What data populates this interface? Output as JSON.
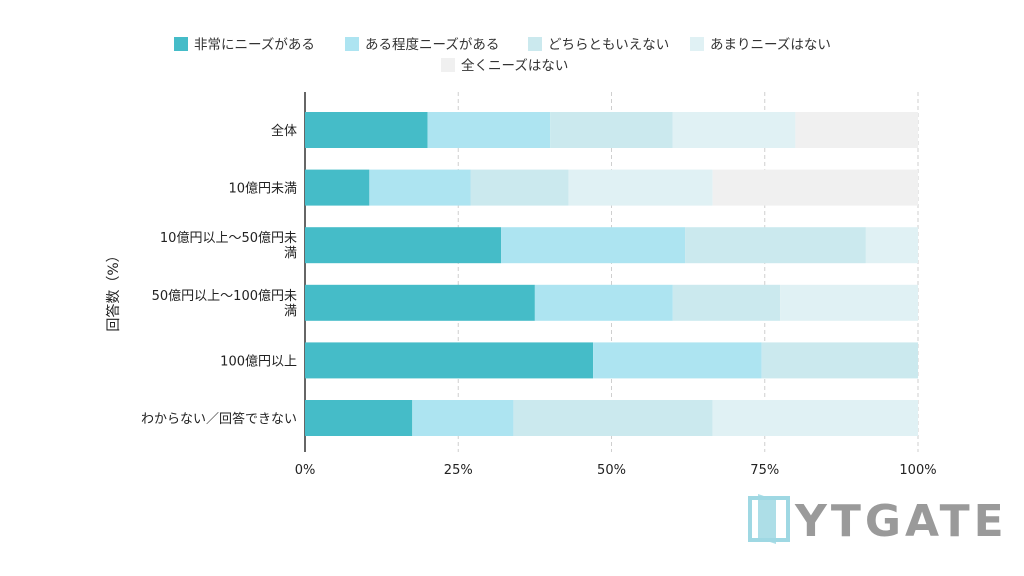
{
  "chart_data": {
    "type": "bar",
    "orientation": "horizontal",
    "stacked": true,
    "normalized": true,
    "categories": [
      "全体",
      "10億円未満",
      "10億円以上〜50億円未満",
      "50億円以上〜100億円未満",
      "100億円以上",
      "わからない／回答できない"
    ],
    "series": [
      {
        "name": "非常にニーズがある",
        "color": "#45bcc8",
        "values": [
          20,
          10.5,
          32,
          37.5,
          47,
          17.5
        ]
      },
      {
        "name": "ある程度ニーズがある",
        "color": "#ade4f1",
        "values": [
          20,
          16.5,
          30,
          22.5,
          27.5,
          16.5
        ]
      },
      {
        "name": "どちらともいえない",
        "color": "#cbe9ee",
        "values": [
          20,
          16,
          29.5,
          17.5,
          25.5,
          32.5
        ]
      },
      {
        "name": "あまりニーズはない",
        "color": "#e0f1f4",
        "values": [
          20,
          23.5,
          8.5,
          22.5,
          0,
          33.5
        ]
      },
      {
        "name": "全くニーズはない",
        "color": "#f0f0f0",
        "values": [
          20,
          33.5,
          0,
          0,
          0,
          0
        ]
      }
    ],
    "xticks": [
      "0%",
      "25%",
      "50%",
      "75%",
      "100%"
    ],
    "xlim": [
      0,
      100
    ],
    "ylabel": "回答数（%）",
    "xlabel": "",
    "grid": true,
    "legend_position": "top"
  },
  "brand": {
    "logo_text": "YTGATE",
    "logo_icon": "door-icon",
    "logo_color": "#9fd8e3"
  }
}
